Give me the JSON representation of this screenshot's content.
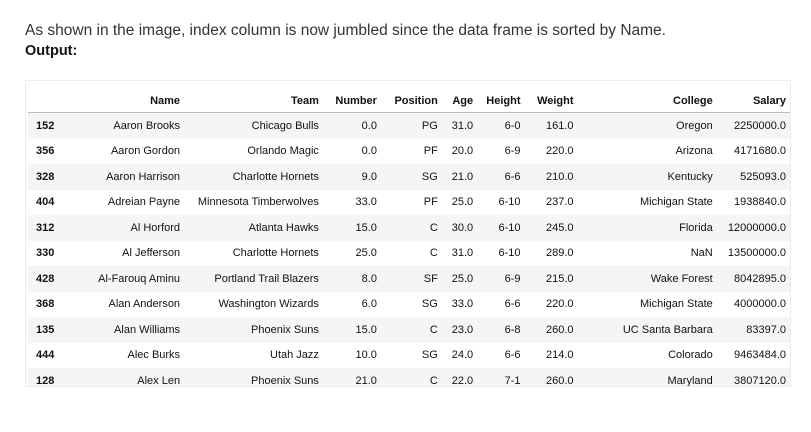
{
  "intro_text": "As shown in the image, index column is now jumbled since the data frame is sorted by Name.",
  "output_label": "Output:",
  "table": {
    "columns": [
      "",
      "Name",
      "Team",
      "Number",
      "Position",
      "Age",
      "Height",
      "Weight",
      "College",
      "Salary"
    ],
    "rows": [
      [
        "152",
        "Aaron Brooks",
        "Chicago Bulls",
        "0.0",
        "PG",
        "31.0",
        "6-0",
        "161.0",
        "Oregon",
        "2250000.0"
      ],
      [
        "356",
        "Aaron Gordon",
        "Orlando Magic",
        "0.0",
        "PF",
        "20.0",
        "6-9",
        "220.0",
        "Arizona",
        "4171680.0"
      ],
      [
        "328",
        "Aaron Harrison",
        "Charlotte Hornets",
        "9.0",
        "SG",
        "21.0",
        "6-6",
        "210.0",
        "Kentucky",
        "525093.0"
      ],
      [
        "404",
        "Adreian Payne",
        "Minnesota Timberwolves",
        "33.0",
        "PF",
        "25.0",
        "6-10",
        "237.0",
        "Michigan State",
        "1938840.0"
      ],
      [
        "312",
        "Al Horford",
        "Atlanta Hawks",
        "15.0",
        "C",
        "30.0",
        "6-10",
        "245.0",
        "Florida",
        "12000000.0"
      ],
      [
        "330",
        "Al Jefferson",
        "Charlotte Hornets",
        "25.0",
        "C",
        "31.0",
        "6-10",
        "289.0",
        "NaN",
        "13500000.0"
      ],
      [
        "428",
        "Al-Farouq Aminu",
        "Portland Trail Blazers",
        "8.0",
        "SF",
        "25.0",
        "6-9",
        "215.0",
        "Wake Forest",
        "8042895.0"
      ],
      [
        "368",
        "Alan Anderson",
        "Washington Wizards",
        "6.0",
        "SG",
        "33.0",
        "6-6",
        "220.0",
        "Michigan State",
        "4000000.0"
      ],
      [
        "135",
        "Alan Williams",
        "Phoenix Suns",
        "15.0",
        "C",
        "23.0",
        "6-8",
        "260.0",
        "UC Santa Barbara",
        "83397.0"
      ],
      [
        "444",
        "Alec Burks",
        "Utah Jazz",
        "10.0",
        "SG",
        "24.0",
        "6-6",
        "214.0",
        "Colorado",
        "9463484.0"
      ],
      [
        "128",
        "Alex Len",
        "Phoenix Suns",
        "21.0",
        "C",
        "22.0",
        "7-1",
        "260.0",
        "Maryland",
        "3807120.0"
      ]
    ]
  }
}
